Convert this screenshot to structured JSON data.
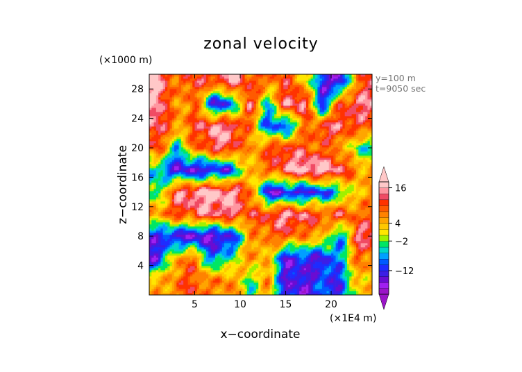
{
  "chart_data": {
    "type": "heatmap",
    "title": "zonal velocity",
    "xlabel": "x−coordinate",
    "ylabel": "z−coordinate",
    "x_unit": "(×1E4 m)",
    "y_unit": "(×1000 m)",
    "annotations": [
      "y=100 m",
      "t=9050 sec"
    ],
    "xlim": [
      0,
      24.5
    ],
    "ylim": [
      0,
      30
    ],
    "xticks": [
      5,
      10,
      15,
      20
    ],
    "yticks": [
      4,
      8,
      12,
      16,
      20,
      24,
      28
    ],
    "xtick_labels": [
      "5",
      "10",
      "15",
      "20"
    ],
    "ytick_labels": [
      "4",
      "8",
      "12",
      "16",
      "20",
      "24",
      "28"
    ],
    "colorbar": {
      "levels": [
        -20,
        -18,
        -16,
        -14,
        -12,
        -10,
        -8,
        -6,
        -4,
        -2,
        0,
        2,
        4,
        6,
        8,
        10,
        12,
        14,
        16,
        18,
        20
      ],
      "colors": [
        "#9b14c8",
        "#a020f0",
        "#6a0cd2",
        "#3c1ee6",
        "#1e2cff",
        "#005aff",
        "#00a0ff",
        "#00d7c8",
        "#00e664",
        "#a0f000",
        "#ffe600",
        "#ffc800",
        "#ffa500",
        "#ff8200",
        "#ff5a00",
        "#ff3200",
        "#f04b64",
        "#ff96a0",
        "#ffc8c8"
      ],
      "extend": "both",
      "tick_values": [
        16,
        4,
        -2,
        -12
      ],
      "tick_labels": [
        "16",
        "4",
        "−2",
        "−12"
      ]
    },
    "grid": false,
    "field_samples": {
      "note_x": [
        1,
        3,
        5,
        7,
        9,
        11,
        13,
        15,
        17,
        19,
        21,
        23
      ],
      "note_z": [
        2,
        5,
        8,
        11,
        14,
        17,
        20,
        23,
        26,
        29
      ],
      "values": [
        [
          4,
          8,
          10,
          6,
          8,
          -4,
          6,
          -14,
          -14,
          -10,
          -12,
          4
        ],
        [
          -14,
          6,
          8,
          -10,
          -2,
          6,
          4,
          -14,
          -12,
          -14,
          -6,
          8
        ],
        [
          -12,
          -14,
          -16,
          -16,
          -14,
          4,
          8,
          10,
          6,
          6,
          -10,
          14
        ],
        [
          6,
          10,
          12,
          14,
          14,
          10,
          12,
          16,
          14,
          10,
          12,
          8
        ],
        [
          -4,
          14,
          16,
          18,
          16,
          10,
          -16,
          -14,
          -14,
          -12,
          -6,
          4
        ],
        [
          -6,
          -14,
          -16,
          -14,
          -12,
          4,
          8,
          14,
          18,
          18,
          14,
          6
        ],
        [
          10,
          -6,
          8,
          12,
          14,
          4,
          10,
          12,
          10,
          8,
          6,
          -4
        ],
        [
          14,
          6,
          10,
          16,
          14,
          8,
          -10,
          -12,
          6,
          12,
          14,
          10
        ],
        [
          16,
          4,
          10,
          -14,
          -12,
          14,
          -6,
          14,
          16,
          -14,
          10,
          14
        ],
        [
          18,
          6,
          12,
          10,
          16,
          10,
          8,
          10,
          4,
          -12,
          -16,
          10
        ]
      ]
    }
  }
}
